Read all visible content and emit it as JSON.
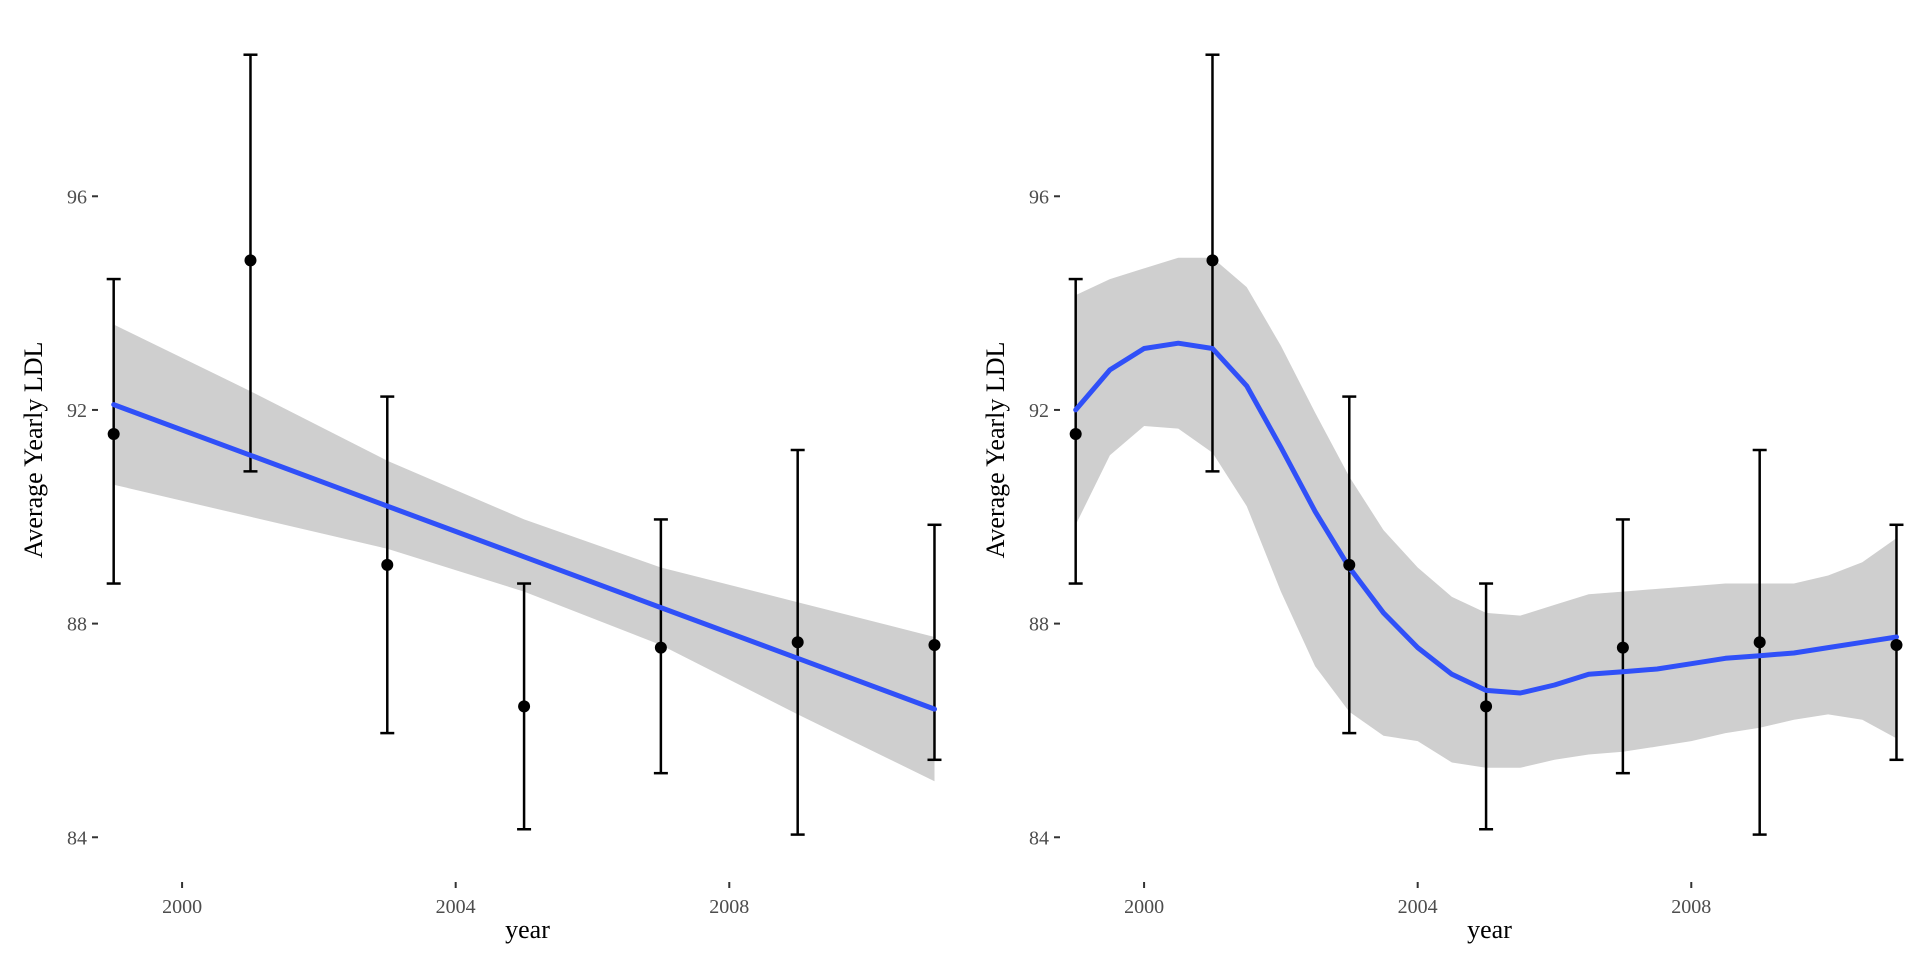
{
  "chart_data": [
    {
      "type": "scatter",
      "panel": "left",
      "smoother": "linear regression",
      "xlabel": "year",
      "ylabel": "Average Yearly LDL",
      "xlim": [
        1998.8,
        2011.3
      ],
      "ylim": [
        83.2,
        99.3
      ],
      "x_ticks": [
        2000,
        2004,
        2008
      ],
      "y_ticks": [
        84,
        88,
        92,
        96
      ],
      "grid": false,
      "legend": "none",
      "colors": {
        "fit_line": "#3050f8",
        "ribbon": "#cfcfcf",
        "points": "#000000",
        "errorbars": "#000000"
      },
      "points": [
        {
          "x": 1999,
          "y": 91.55,
          "lower": 88.75,
          "upper": 94.45
        },
        {
          "x": 2001,
          "y": 94.8,
          "lower": 90.85,
          "upper": 98.65
        },
        {
          "x": 2003,
          "y": 89.1,
          "lower": 85.95,
          "upper": 92.25
        },
        {
          "x": 2005,
          "y": 86.45,
          "lower": 84.15,
          "upper": 88.75
        },
        {
          "x": 2007,
          "y": 87.55,
          "lower": 85.2,
          "upper": 89.95
        },
        {
          "x": 2009,
          "y": 87.65,
          "lower": 84.05,
          "upper": 91.25
        },
        {
          "x": 2011,
          "y": 87.6,
          "lower": 85.45,
          "upper": 89.85
        }
      ],
      "fit": {
        "x": [
          1999,
          2001,
          2003,
          2005,
          2007,
          2009,
          2011
        ],
        "y": [
          92.1,
          91.15,
          90.2,
          89.25,
          88.3,
          87.35,
          86.4
        ],
        "lower": [
          90.6,
          90.0,
          89.4,
          88.6,
          87.6,
          86.3,
          85.05
        ],
        "upper": [
          93.6,
          92.35,
          91.05,
          89.95,
          89.05,
          88.4,
          87.75
        ]
      }
    },
    {
      "type": "scatter",
      "panel": "right",
      "smoother": "loess",
      "xlabel": "year",
      "ylabel": "Average Yearly LDL",
      "xlim": [
        1998.8,
        2011.3
      ],
      "ylim": [
        83.2,
        99.3
      ],
      "x_ticks": [
        2000,
        2004,
        2008
      ],
      "y_ticks": [
        84,
        88,
        92,
        96
      ],
      "grid": false,
      "legend": "none",
      "colors": {
        "fit_line": "#3050f8",
        "ribbon": "#cfcfcf",
        "points": "#000000",
        "errorbars": "#000000"
      },
      "points": [
        {
          "x": 1999,
          "y": 91.55,
          "lower": 88.75,
          "upper": 94.45
        },
        {
          "x": 2001,
          "y": 94.8,
          "lower": 90.85,
          "upper": 98.65
        },
        {
          "x": 2003,
          "y": 89.1,
          "lower": 85.95,
          "upper": 92.25
        },
        {
          "x": 2005,
          "y": 86.45,
          "lower": 84.15,
          "upper": 88.75
        },
        {
          "x": 2007,
          "y": 87.55,
          "lower": 85.2,
          "upper": 89.95
        },
        {
          "x": 2009,
          "y": 87.65,
          "lower": 84.05,
          "upper": 91.25
        },
        {
          "x": 2011,
          "y": 87.6,
          "lower": 85.45,
          "upper": 89.85
        }
      ],
      "fit": {
        "x": [
          1999,
          1999.5,
          2000,
          2000.5,
          2001,
          2001.5,
          2002,
          2002.5,
          2003,
          2003.5,
          2004,
          2004.5,
          2005,
          2005.5,
          2006,
          2006.5,
          2007,
          2007.5,
          2008,
          2008.5,
          2009,
          2009.5,
          2010,
          2010.5,
          2011
        ],
        "y": [
          92.0,
          92.75,
          93.15,
          93.25,
          93.15,
          92.45,
          91.3,
          90.1,
          89.05,
          88.2,
          87.55,
          87.05,
          86.75,
          86.7,
          86.85,
          87.05,
          87.1,
          87.15,
          87.25,
          87.35,
          87.4,
          87.45,
          87.55,
          87.65,
          87.75
        ],
        "lower": [
          89.85,
          91.15,
          91.7,
          91.65,
          91.2,
          90.2,
          88.6,
          87.2,
          86.35,
          85.9,
          85.8,
          85.4,
          85.3,
          85.3,
          85.45,
          85.55,
          85.6,
          85.7,
          85.8,
          85.95,
          86.05,
          86.2,
          86.3,
          86.2,
          85.85
        ],
        "upper": [
          94.15,
          94.45,
          94.65,
          94.85,
          94.85,
          94.3,
          93.2,
          91.95,
          90.75,
          89.75,
          89.05,
          88.5,
          88.2,
          88.15,
          88.35,
          88.55,
          88.6,
          88.65,
          88.7,
          88.75,
          88.75,
          88.75,
          88.9,
          89.15,
          89.6
        ]
      }
    }
  ]
}
